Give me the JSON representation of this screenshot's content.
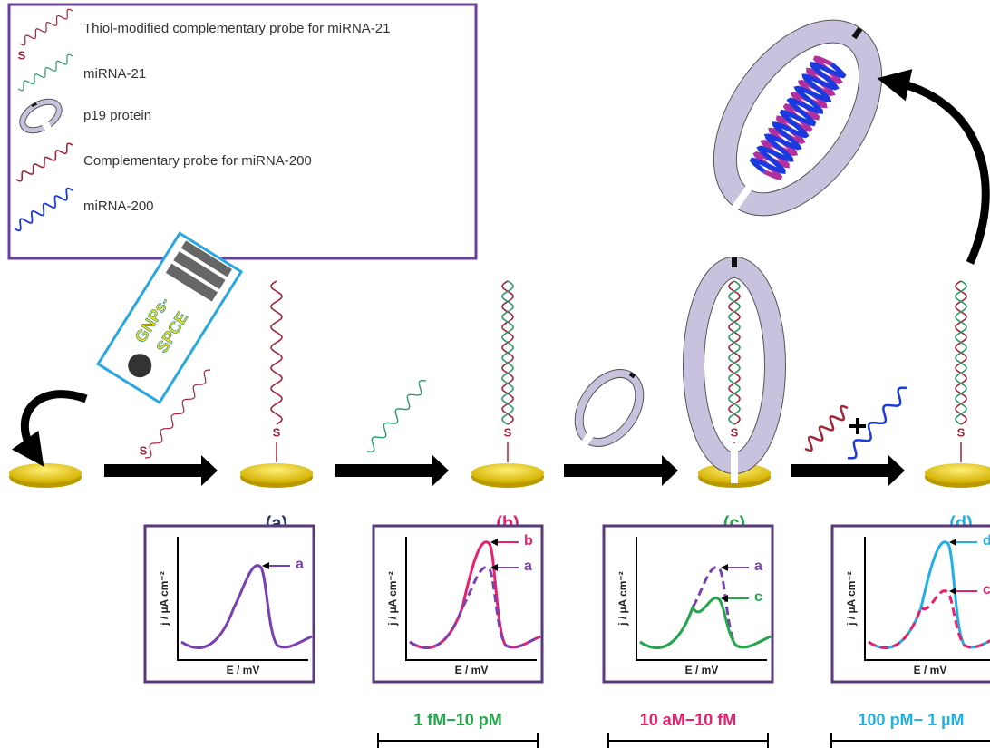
{
  "legend": {
    "items": [
      "Thiol-modified complementary probe for miRNA-21",
      "miRNA-21",
      "p19 protein",
      "Complementary probe for miRNA-200",
      "miRNA-200"
    ]
  },
  "chip": {
    "line1": "GNPs-",
    "line2": "SPCE"
  },
  "linker": "S",
  "steps": [
    {
      "label": "(a)",
      "curve_labels": [
        "a"
      ]
    },
    {
      "label": "(b)",
      "curve_labels": [
        "b",
        "a"
      ]
    },
    {
      "label": "(c)",
      "curve_labels": [
        "a",
        "c"
      ]
    },
    {
      "label": "(d)",
      "curve_labels": [
        "d",
        "c"
      ]
    }
  ],
  "axes": {
    "y": "j / µA cm⁻²",
    "x": "E / mV"
  },
  "ranges": [
    "1 fM−10 pM",
    "10 aM−10 fM",
    "100 pM− 1 µM"
  ]
}
